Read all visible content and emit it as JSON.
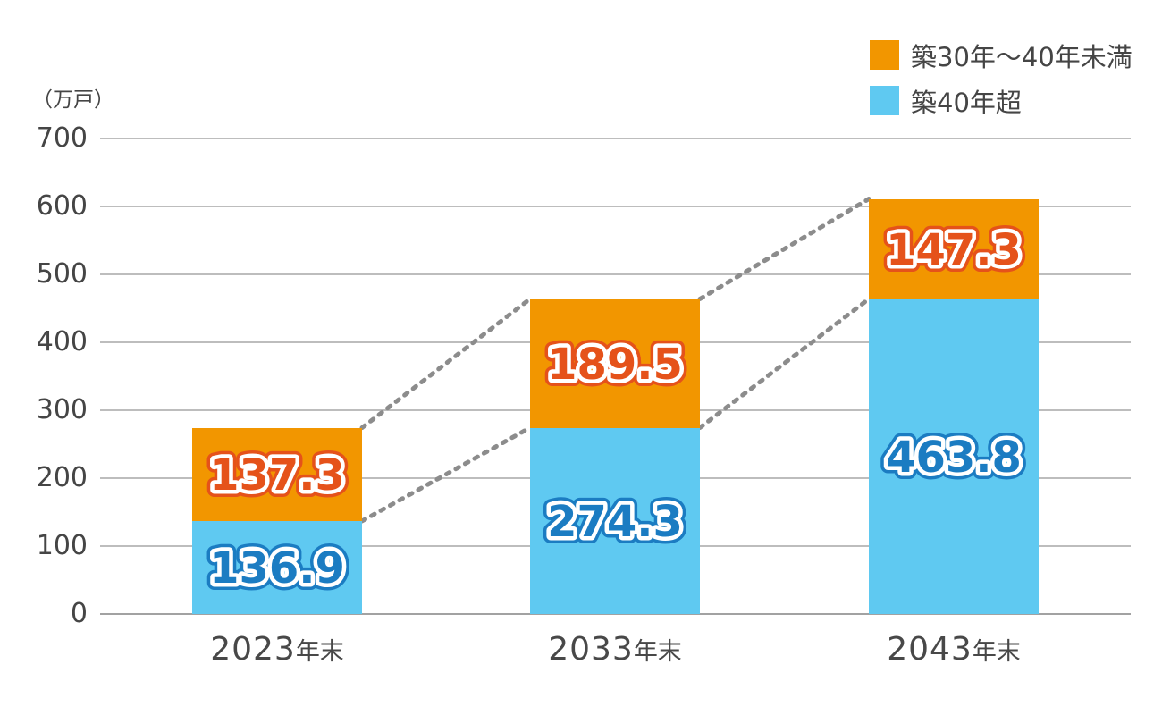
{
  "chart_data": {
    "type": "bar",
    "stacked": true,
    "title": "",
    "unit_label": "（万戸）",
    "categories": [
      {
        "year": "2023",
        "suffix": "年末"
      },
      {
        "year": "2033",
        "suffix": "年末"
      },
      {
        "year": "2043",
        "suffix": "年末"
      }
    ],
    "series": [
      {
        "name": "築30年～40年未満",
        "stack": "top",
        "color": "#F29600",
        "label_color": "#E5521A",
        "values": [
          137.3,
          189.5,
          147.3
        ]
      },
      {
        "name": "築40年超",
        "stack": "bottom",
        "color": "#5FC9F1",
        "label_color": "#1B7CC2",
        "values": [
          136.9,
          274.3,
          463.8
        ]
      }
    ],
    "y_ticks": [
      0,
      100,
      200,
      300,
      400,
      500,
      600,
      700
    ],
    "ylim": [
      0,
      700
    ],
    "grid": "horizontal",
    "legend_position": "top-right",
    "value_label_text_fill": "#FFFFFF-banded-outline",
    "text_color": "#454545",
    "grid_color": "#BDBDBD",
    "baseline_color": "#A2A2A2",
    "connector_lines": {
      "style": "dotted",
      "color": "#8C8C8C",
      "description": "dotted lines linking bar totals and stack boundaries between adjacent bars"
    }
  }
}
